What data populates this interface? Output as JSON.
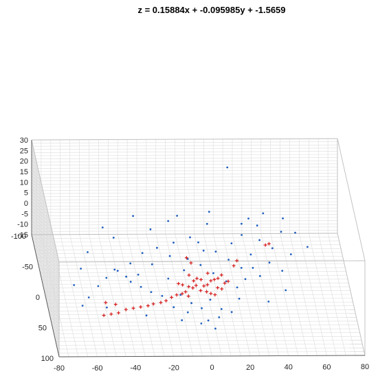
{
  "chart_data": {
    "type": "scatter",
    "title": "z =  0.15884x + -0.095985y + -1.5659",
    "xlabel": "",
    "ylabel": "",
    "zlabel": "",
    "x_ticks": [
      "-80",
      "-60",
      "-40",
      "-20",
      "0",
      "20",
      "40",
      "60",
      "80"
    ],
    "y_ticks": [
      "-100",
      "-50",
      "0",
      "50",
      "100"
    ],
    "z_ticks": [
      "-15",
      "-10",
      "-5",
      "0",
      "5",
      "10",
      "15",
      "20",
      "25",
      "30"
    ],
    "xlim": [
      -80,
      80
    ],
    "ylim": [
      -100,
      100
    ],
    "zlim": [
      -15,
      30
    ],
    "grid": true,
    "series": [
      {
        "marker": "point",
        "color": "#1f5fbf",
        "values": [
          [
            -62,
            20,
            -14
          ],
          [
            -58,
            10,
            -13
          ],
          [
            -52,
            -5,
            -12
          ],
          [
            -47,
            -15,
            -11
          ],
          [
            -42,
            -25,
            -10
          ],
          [
            -40,
            -30,
            -12
          ],
          [
            -37,
            -10,
            -9
          ],
          [
            -33,
            -35,
            -10
          ],
          [
            -30,
            -20,
            -11
          ],
          [
            -26,
            -45,
            -8
          ],
          [
            -22,
            -30,
            -9
          ],
          [
            -18,
            -50,
            -7
          ],
          [
            -15,
            -10,
            -10
          ],
          [
            -12,
            -40,
            -8
          ],
          [
            -9,
            -55,
            -6
          ],
          [
            -6,
            -20,
            -9
          ],
          [
            -3,
            -35,
            -8
          ],
          [
            0,
            -60,
            -5
          ],
          [
            3,
            -25,
            -8
          ],
          [
            6,
            -45,
            -7
          ],
          [
            9,
            -15,
            -9
          ],
          [
            12,
            -40,
            -6
          ],
          [
            15,
            -5,
            -10
          ],
          [
            18,
            -30,
            -7
          ],
          [
            21,
            -50,
            -5
          ],
          [
            24,
            -20,
            -8
          ],
          [
            27,
            -60,
            -4
          ],
          [
            30,
            -35,
            -6
          ],
          [
            33,
            -10,
            -9
          ],
          [
            36,
            -55,
            -5
          ],
          [
            39,
            -25,
            -7
          ],
          [
            42,
            -45,
            -6
          ],
          [
            45,
            -15,
            -8
          ],
          [
            48,
            -65,
            -4
          ],
          [
            51,
            -35,
            -6
          ],
          [
            -10,
            10,
            -12
          ],
          [
            -5,
            20,
            -13
          ],
          [
            0,
            25,
            -14
          ],
          [
            5,
            18,
            -12
          ],
          [
            10,
            30,
            -13
          ],
          [
            -20,
            15,
            -11
          ],
          [
            -25,
            5,
            -12
          ],
          [
            -30,
            0,
            -11
          ],
          [
            -35,
            -5,
            -10
          ],
          [
            20,
            5,
            -10
          ],
          [
            25,
            -5,
            -9
          ],
          [
            8,
            40,
            -14
          ],
          [
            -8,
            35,
            -13
          ],
          [
            2,
            45,
            -14
          ],
          [
            -15,
            30,
            -12
          ],
          [
            15,
            35,
            -13
          ],
          [
            28,
            -75,
            -3
          ],
          [
            32,
            -80,
            -2
          ],
          [
            36,
            -72,
            -3
          ],
          [
            -40,
            -60,
            -5
          ],
          [
            -45,
            -70,
            -3
          ],
          [
            -20,
            -70,
            -4
          ],
          [
            -10,
            -80,
            -3
          ],
          [
            10,
            -75,
            -3
          ],
          [
            50,
            -80,
            -2
          ],
          [
            55,
            -60,
            -3
          ],
          [
            -55,
            -40,
            -6
          ],
          [
            -60,
            -20,
            -8
          ],
          [
            40,
            -85,
            -1
          ],
          [
            -5,
            -85,
            -2
          ],
          [
            -28,
            -85,
            -2
          ],
          [
            12,
            -88,
            -1
          ],
          [
            60,
            -40,
            -4
          ],
          [
            45,
            10,
            -10
          ],
          [
            35,
            25,
            -11
          ],
          [
            -50,
            30,
            -12
          ],
          [
            -65,
            0,
            -10
          ],
          [
            0,
            0,
            10
          ],
          [
            22,
            -95,
            18
          ],
          [
            -2,
            50,
            -14
          ],
          [
            5,
            55,
            -15
          ],
          [
            -12,
            48,
            -13
          ],
          [
            20,
            20,
            -11
          ],
          [
            -30,
            40,
            -13
          ],
          [
            30,
            -20,
            -8
          ]
        ]
      },
      {
        "marker": "plus",
        "color": "#d61a1a",
        "values": [
          [
            -5,
            0,
            -11
          ],
          [
            -3,
            2,
            -11
          ],
          [
            -1,
            -2,
            -11
          ],
          [
            1,
            3,
            -12
          ],
          [
            3,
            -1,
            -11
          ],
          [
            -7,
            5,
            -12
          ],
          [
            -9,
            8,
            -12
          ],
          [
            -12,
            10,
            -12
          ],
          [
            -15,
            14,
            -12
          ],
          [
            -18,
            16,
            -13
          ],
          [
            -21,
            19,
            -13
          ],
          [
            -25,
            21,
            -13
          ],
          [
            -28,
            24,
            -13
          ],
          [
            -32,
            26,
            -13
          ],
          [
            -36,
            28,
            -13
          ],
          [
            -40,
            30,
            -13
          ],
          [
            -44,
            32,
            -14
          ],
          [
            -48,
            34,
            -14
          ],
          [
            -52,
            36,
            -14
          ],
          [
            5,
            -3,
            -11
          ],
          [
            7,
            -6,
            -10
          ],
          [
            9,
            -8,
            -10
          ],
          [
            11,
            -10,
            -10
          ],
          [
            13,
            -12,
            -9
          ],
          [
            2,
            -8,
            -10
          ],
          [
            0,
            -10,
            -10
          ],
          [
            -2,
            -6,
            -10
          ],
          [
            4,
            5,
            -12
          ],
          [
            6,
            8,
            -12
          ],
          [
            8,
            10,
            -12
          ],
          [
            -4,
            -12,
            -9
          ],
          [
            6,
            -15,
            -9
          ],
          [
            -8,
            -3,
            -11
          ],
          [
            10,
            2,
            -11
          ],
          [
            12,
            4,
            -11
          ],
          [
            -6,
            12,
            -12
          ],
          [
            -10,
            -5,
            -11
          ],
          [
            14,
            -2,
            -10
          ],
          [
            16,
            -5,
            -10
          ],
          [
            20,
            -20,
            -7
          ],
          [
            22,
            -25,
            -6
          ],
          [
            -2,
            -25,
            -7
          ],
          [
            -4,
            -30,
            -6
          ],
          [
            38,
            -40,
            -3
          ],
          [
            40,
            -42,
            -3
          ],
          [
            -45,
            25,
            -12
          ],
          [
            -50,
            22,
            -12
          ]
        ]
      }
    ]
  }
}
